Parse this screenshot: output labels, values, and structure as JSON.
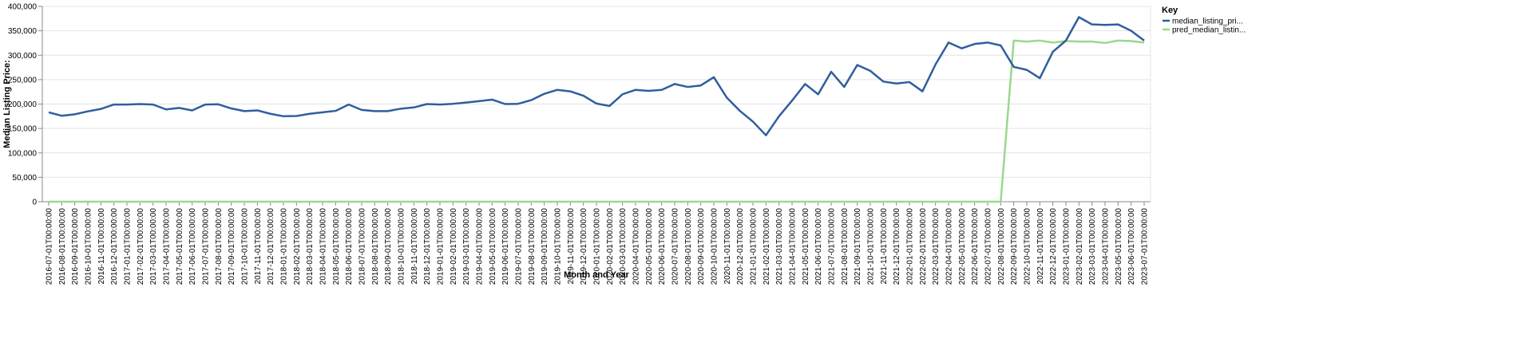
{
  "chart_data": {
    "type": "line",
    "xlabel": "Month and Year",
    "ylabel": "Median Listing Price:",
    "ylim": [
      0,
      400000
    ],
    "yticks": [
      "0",
      "50,000",
      "100,000",
      "150,000",
      "200,000",
      "250,000",
      "300,000",
      "350,000",
      "400,000"
    ],
    "grid": true,
    "legend_title": "Key",
    "legend_position": "right",
    "x": [
      "2016-07-01T00:00:00",
      "2016-08-01T00:00:00",
      "2016-09-01T00:00:00",
      "2016-10-01T00:00:00",
      "2016-11-01T00:00:00",
      "2016-12-01T00:00:00",
      "2017-01-01T00:00:00",
      "2017-02-01T00:00:00",
      "2017-03-01T00:00:00",
      "2017-04-01T00:00:00",
      "2017-05-01T00:00:00",
      "2017-06-01T00:00:00",
      "2017-07-01T00:00:00",
      "2017-08-01T00:00:00",
      "2017-09-01T00:00:00",
      "2017-10-01T00:00:00",
      "2017-11-01T00:00:00",
      "2017-12-01T00:00:00",
      "2018-01-01T00:00:00",
      "2018-02-01T00:00:00",
      "2018-03-01T00:00:00",
      "2018-04-01T00:00:00",
      "2018-05-01T00:00:00",
      "2018-06-01T00:00:00",
      "2018-07-01T00:00:00",
      "2018-08-01T00:00:00",
      "2018-09-01T00:00:00",
      "2018-10-01T00:00:00",
      "2018-11-01T00:00:00",
      "2018-12-01T00:00:00",
      "2019-01-01T00:00:00",
      "2019-02-01T00:00:00",
      "2019-03-01T00:00:00",
      "2019-04-01T00:00:00",
      "2019-05-01T00:00:00",
      "2019-06-01T00:00:00",
      "2019-07-01T00:00:00",
      "2019-08-01T00:00:00",
      "2019-09-01T00:00:00",
      "2019-10-01T00:00:00",
      "2019-11-01T00:00:00",
      "2019-12-01T00:00:00",
      "2020-01-01T00:00:00",
      "2020-02-01T00:00:00",
      "2020-03-01T00:00:00",
      "2020-04-01T00:00:00",
      "2020-05-01T00:00:00",
      "2020-06-01T00:00:00",
      "2020-07-01T00:00:00",
      "2020-08-01T00:00:00",
      "2020-09-01T00:00:00",
      "2020-10-01T00:00:00",
      "2020-11-01T00:00:00",
      "2020-12-01T00:00:00",
      "2021-01-01T00:00:00",
      "2021-02-01T00:00:00",
      "2021-03-01T00:00:00",
      "2021-04-01T00:00:00",
      "2021-05-01T00:00:00",
      "2021-06-01T00:00:00",
      "2021-07-01T00:00:00",
      "2021-08-01T00:00:00",
      "2021-09-01T00:00:00",
      "2021-10-01T00:00:00",
      "2021-11-01T00:00:00",
      "2021-12-01T00:00:00",
      "2022-01-01T00:00:00",
      "2022-02-01T00:00:00",
      "2022-03-01T00:00:00",
      "2022-04-01T00:00:00",
      "2022-05-01T00:00:00",
      "2022-06-01T00:00:00",
      "2022-07-01T00:00:00",
      "2022-08-01T00:00:00",
      "2022-09-01T00:00:00",
      "2022-10-01T00:00:00",
      "2022-11-01T00:00:00",
      "2022-12-01T00:00:00",
      "2023-01-01T00:00:00",
      "2023-02-01T00:00:00",
      "2023-03-01T00:00:00",
      "2023-04-01T00:00:00",
      "2023-05-01T00:00:00",
      "2023-06-01T00:00:00",
      "2023-07-01T00:00:00"
    ],
    "series": [
      {
        "name": "median_listing_pri...",
        "color": "#2f5e9e",
        "values": [
          183000,
          176000,
          179000,
          185000,
          190000,
          199000,
          199000,
          200000,
          199000,
          189000,
          192000,
          187000,
          199000,
          199500,
          191000,
          185500,
          187000,
          180000,
          175000,
          175500,
          180000,
          183000,
          186000,
          199000,
          188000,
          185500,
          185500,
          190500,
          193000,
          200000,
          199000,
          200500,
          203000,
          206000,
          209000,
          200000,
          200500,
          208000,
          221000,
          229000,
          226000,
          217000,
          201000,
          196000,
          220000,
          229000,
          227000,
          229000,
          241000,
          235000,
          238000,
          255000,
          213000,
          186000,
          164000,
          136000,
          175000,
          207000,
          241000,
          220000,
          266000,
          235000,
          280000,
          268000,
          246000,
          242000,
          245000,
          226000,
          281000,
          326000,
          314000,
          323000,
          326000,
          320000,
          276000,
          270000,
          253000,
          307000,
          330000,
          378000,
          363000,
          362000,
          363000,
          350000,
          330000
        ]
      },
      {
        "name": "pred_median_listin...",
        "color": "#98d98e",
        "values": [
          0,
          0,
          0,
          0,
          0,
          0,
          0,
          0,
          0,
          0,
          0,
          0,
          0,
          0,
          0,
          0,
          0,
          0,
          0,
          0,
          0,
          0,
          0,
          0,
          0,
          0,
          0,
          0,
          0,
          0,
          0,
          0,
          0,
          0,
          0,
          0,
          0,
          0,
          0,
          0,
          0,
          0,
          0,
          0,
          0,
          0,
          0,
          0,
          0,
          0,
          0,
          0,
          0,
          0,
          0,
          0,
          0,
          0,
          0,
          0,
          0,
          0,
          0,
          0,
          0,
          0,
          0,
          0,
          0,
          0,
          0,
          0,
          0,
          0,
          330000,
          328000,
          330000,
          326000,
          329000,
          328000,
          328000,
          325000,
          330000,
          329000,
          326000
        ]
      }
    ]
  }
}
